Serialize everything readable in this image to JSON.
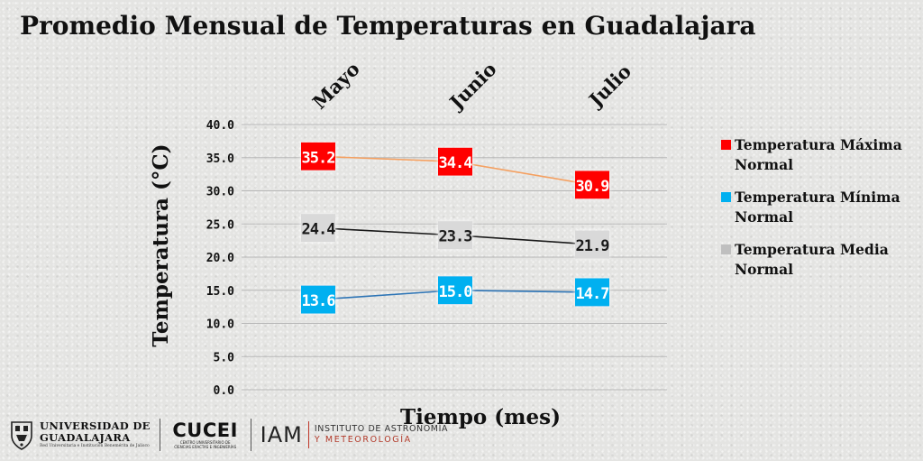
{
  "title": "Promedio Mensual de Temperaturas en Guadalajara",
  "chart_data": {
    "type": "line",
    "title": "Promedio Mensual de Temperaturas en Guadalajara",
    "xlabel": "Tiempo (mes)",
    "ylabel": "Temperatura  (°C)",
    "categories": [
      "Mayo",
      "Junio",
      "Julio"
    ],
    "ylim": [
      0,
      40
    ],
    "yticks": [
      "0.0",
      "5.0",
      "10.0",
      "15.0",
      "20.0",
      "25.0",
      "30.0",
      "35.0",
      "40.0"
    ],
    "grid": true,
    "legend_position": "right",
    "series": [
      {
        "name": "Temperatura Máxima Normal",
        "values": [
          35.2,
          34.4,
          30.9
        ],
        "labels": [
          "35.2",
          "34.4",
          "30.9"
        ],
        "color": "#ff0000",
        "line_color": "#f5a060",
        "label_text_color": "#ffffff"
      },
      {
        "name": "Temperatura Mínima Normal",
        "values": [
          13.6,
          15.0,
          14.7
        ],
        "labels": [
          "13.6",
          "15.0",
          "14.7"
        ],
        "color": "#00b0f0",
        "line_color": "#2e75b6",
        "label_text_color": "#ffffff"
      },
      {
        "name": "Temperatura Media Normal",
        "values": [
          24.4,
          23.3,
          21.9
        ],
        "labels": [
          "24.4",
          "23.3",
          "21.9"
        ],
        "color": "#d9d9d9",
        "line_color": "#1a1a1a",
        "label_text_color": "#1a1a1a"
      }
    ]
  },
  "legend": {
    "items": [
      {
        "label": "Temperatura Máxima Normal",
        "color": "#ff0000"
      },
      {
        "label": "Temperatura Mínima Normal",
        "color": "#00b0f0"
      },
      {
        "label": "Temperatura Media Normal",
        "color": "#bfbfbf"
      }
    ]
  },
  "logos": {
    "udg_name_1": "UNIVERSIDAD DE",
    "udg_name_2": "GUADALAJARA",
    "udg_tagline": "Red Universitaria e Institución Benemérita de Jalisco",
    "cucei_name": "CUCEI",
    "cucei_sub_1": "CENTRO UNIVERSITARIO DE",
    "cucei_sub_2": "CIENCIAS EXACTAS E INGENIERÍAS",
    "iam_name": "IAM",
    "iam_line_1": "INSTITUTO DE ASTRONOMÍA",
    "iam_line_2": "Y METEOROLOGÍA"
  }
}
